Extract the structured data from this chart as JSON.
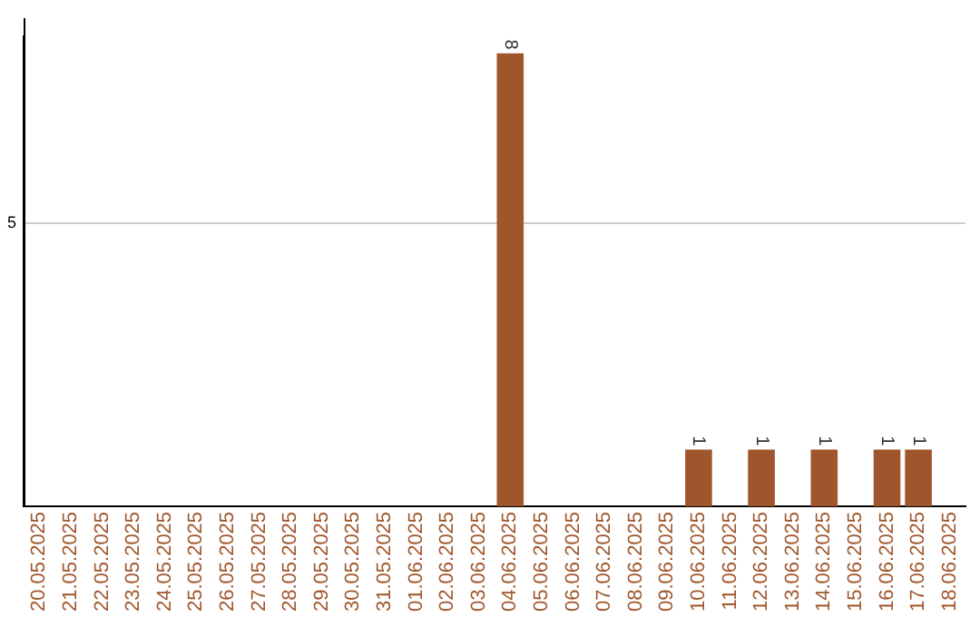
{
  "chart_data": {
    "type": "bar",
    "categories": [
      "20.05.2025",
      "21.05.2025",
      "22.05.2025",
      "23.05.2025",
      "24.05.2025",
      "25.05.2025",
      "26.05.2025",
      "27.05.2025",
      "28.05.2025",
      "29.05.2025",
      "30.05.2025",
      "31.05.2025",
      "01.06.2025",
      "02.06.2025",
      "03.06.2025",
      "04.06.2025",
      "05.06.2025",
      "06.06.2025",
      "07.06.2025",
      "08.06.2025",
      "09.06.2025",
      "10.06.2025",
      "11.06.2025",
      "12.06.2025",
      "13.06.2025",
      "14.06.2025",
      "15.06.2025",
      "16.06.2025",
      "17.06.2025",
      "18.06.2025"
    ],
    "values": [
      null,
      null,
      null,
      null,
      null,
      null,
      null,
      null,
      null,
      null,
      null,
      null,
      null,
      null,
      null,
      8,
      null,
      null,
      null,
      null,
      null,
      1,
      null,
      1,
      null,
      1,
      null,
      1,
      1,
      null
    ],
    "data_labels": true,
    "color": "#a0562c",
    "ylim": [
      0,
      8.3
    ],
    "yticks": [
      5
    ],
    "grid": "y",
    "legend": false
  }
}
